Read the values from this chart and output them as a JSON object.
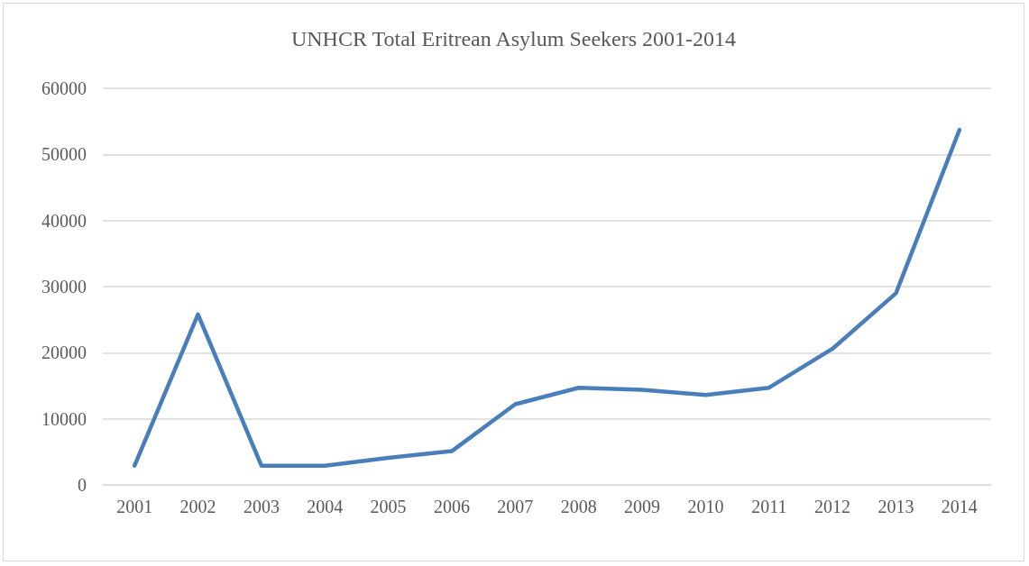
{
  "chart_data": {
    "type": "line",
    "title": "UNHCR Total Eritrean Asylum Seekers 2001-2014",
    "categories": [
      "2001",
      "2002",
      "2003",
      "2004",
      "2005",
      "2006",
      "2007",
      "2008",
      "2009",
      "2010",
      "2011",
      "2012",
      "2013",
      "2014"
    ],
    "series": [
      {
        "color": "#4a7ebb",
        "values": [
          2900,
          25800,
          2900,
          2900,
          4100,
          5100,
          12200,
          14700,
          14400,
          13600,
          14700,
          20600,
          29000,
          53700
        ]
      }
    ],
    "ylim": [
      0,
      60000
    ],
    "yticks": [
      0,
      10000,
      20000,
      30000,
      40000,
      50000,
      60000
    ],
    "grid": "y",
    "marker": "none",
    "line_style": "solid"
  }
}
